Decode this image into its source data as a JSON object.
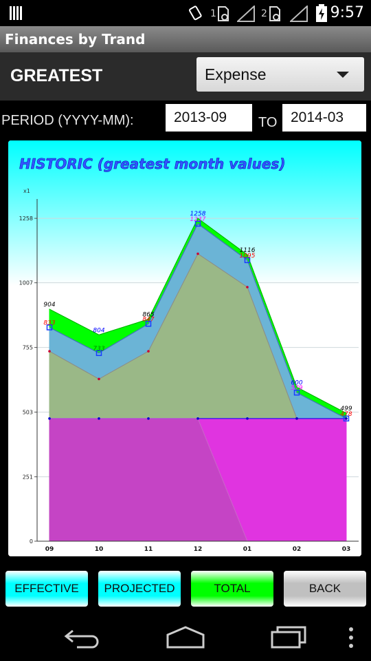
{
  "status_bar": {
    "time": "9:57",
    "sim1": "1",
    "sim2": "2"
  },
  "app": {
    "title": "Finances by Trand"
  },
  "header": {
    "section_label": "GREATEST",
    "type_select": {
      "value": "Expense"
    }
  },
  "period": {
    "label": "PERIOD (YYYY-MM):",
    "from": "2013-09",
    "to_label": "TO",
    "to": "2014-03"
  },
  "chart_data": {
    "type": "area",
    "title": "HISTORIC (greatest month values)",
    "unit_label": "x1",
    "categories": [
      "09",
      "10",
      "11",
      "12",
      "01",
      "02",
      "03"
    ],
    "y_ticks": [
      0,
      251,
      503,
      755,
      1007,
      1258
    ],
    "ylim": [
      0,
      1320
    ],
    "grid": true,
    "legend": "none",
    "series": [
      {
        "values": [
          904,
          804,
          865,
          1258,
          1116,
          600,
          499
        ],
        "color": "#00ff00"
      },
      {
        "values": [
          833,
          733,
          847,
          1237,
          1095,
          579,
          478
        ],
        "color": "#e8944a"
      },
      {
        "values": [
          833,
          733,
          847,
          1237,
          1095,
          579,
          478
        ],
        "color": "#6bb4d6"
      },
      {
        "values": [
          740,
          632,
          740,
          1120,
          990,
          478,
          478
        ],
        "color": "#9ab887"
      },
      {
        "values": [
          478,
          478,
          478,
          478,
          478,
          478,
          478
        ],
        "color": "#e034e0"
      },
      {
        "values": [
          478,
          478,
          478,
          478,
          0,
          0,
          0
        ],
        "color": "#c048c0"
      }
    ],
    "data_labels": [
      {
        "text": "904",
        "x": "09",
        "y": 904,
        "color": "#000000"
      },
      {
        "text": "833",
        "x": "09",
        "y": 833,
        "color": "#ff0000"
      },
      {
        "text": "804",
        "x": "10",
        "y": 804,
        "color": "#0000ff"
      },
      {
        "text": "733",
        "x": "10",
        "y": 733,
        "color": "#008000"
      },
      {
        "text": "865",
        "x": "11",
        "y": 865,
        "color": "#000000"
      },
      {
        "text": "847",
        "x": "11",
        "y": 847,
        "color": "#ff0000"
      },
      {
        "text": "1258",
        "x": "12",
        "y": 1258,
        "color": "#0000ff"
      },
      {
        "text": "1237",
        "x": "12",
        "y": 1237,
        "color": "#ff00ff"
      },
      {
        "text": "1116",
        "x": "01",
        "y": 1116,
        "color": "#000000"
      },
      {
        "text": "1095",
        "x": "01",
        "y": 1095,
        "color": "#ff0000"
      },
      {
        "text": "600",
        "x": "02",
        "y": 600,
        "color": "#0000ff"
      },
      {
        "text": "579",
        "x": "02",
        "y": 579,
        "color": "#ff00ff"
      },
      {
        "text": "499",
        "x": "03",
        "y": 499,
        "color": "#000000"
      },
      {
        "text": "478",
        "x": "03",
        "y": 478,
        "color": "#ff0000"
      }
    ]
  },
  "buttons": {
    "effective": {
      "label": "EFFECTIVE",
      "color": "#00ffff"
    },
    "projected": {
      "label": "PROJECTED",
      "color": "#00ffff"
    },
    "total": {
      "label": "TOTAL",
      "color": "#00ff00"
    },
    "back": {
      "label": "BACK",
      "color": "#c0c0c0"
    }
  },
  "icons": {
    "status_left": "sim-card-icon",
    "status_right": [
      "vibrate-icon",
      "data-sim1-icon",
      "signal-icon",
      "data-sim2-icon",
      "signal-icon",
      "battery-charging-icon"
    ],
    "nav": [
      "back-icon",
      "home-icon",
      "recents-icon",
      "overflow-menu-icon"
    ]
  }
}
